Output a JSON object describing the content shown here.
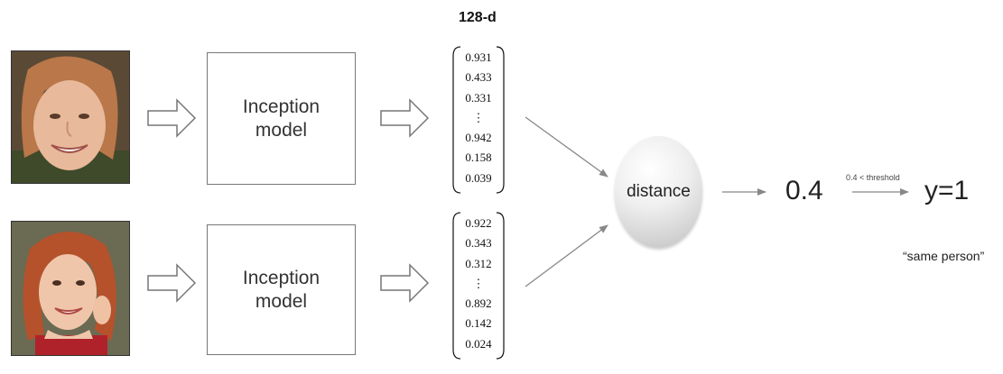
{
  "dimension_label": "128-d",
  "pipelines": [
    {
      "model_label_line1": "Inception",
      "model_label_line2": "model",
      "encoding": [
        "0.931",
        "0.433",
        "0.331",
        "⋮",
        "0.942",
        "0.158",
        "0.039"
      ]
    },
    {
      "model_label_line1": "Inception",
      "model_label_line2": "model",
      "encoding": [
        "0.922",
        "0.343",
        "0.312",
        "⋮",
        "0.892",
        "0.142",
        "0.024"
      ]
    }
  ],
  "distance_label": "distance",
  "distance_value": "0.4",
  "comparison_label": "0.4 < threshold",
  "output_label": "y=1",
  "output_note": "“same person”",
  "colors": {
    "box_border": "#777777",
    "arrow": "#888888",
    "skin": "#e8b99a",
    "hair": "#b5522c"
  }
}
